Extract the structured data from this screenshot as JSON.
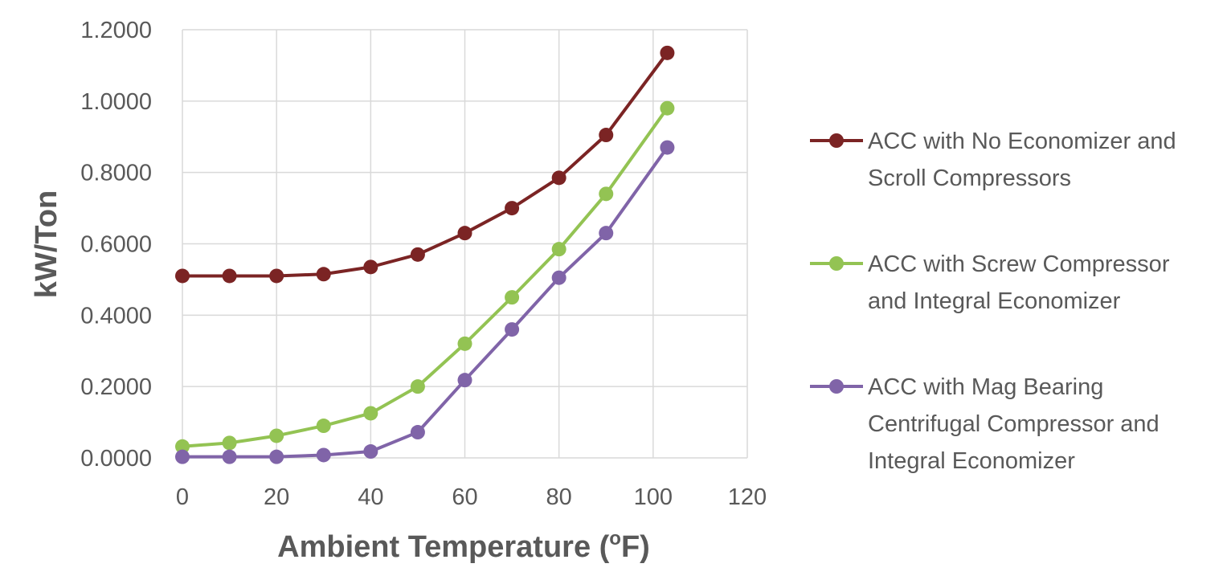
{
  "chart_data": {
    "type": "line",
    "title": "",
    "xlabel": "Ambient Temperature (",
    "xlabel_superscript": "o",
    "xlabel_suffix": "F)",
    "ylabel": "kW/Ton",
    "xlim": [
      0,
      120
    ],
    "ylim": [
      0,
      1.2
    ],
    "xticks": [
      0,
      20,
      40,
      60,
      80,
      100,
      120
    ],
    "xtick_labels": [
      "0",
      "20",
      "40",
      "60",
      "80",
      "100",
      "120"
    ],
    "yticks": [
      0,
      0.2,
      0.4,
      0.6,
      0.8,
      1.0,
      1.2
    ],
    "ytick_labels": [
      "0.0000",
      "0.2000",
      "0.4000",
      "0.6000",
      "0.8000",
      "1.0000",
      "1.2000"
    ],
    "grid": true,
    "legend_position": "right",
    "x": [
      0,
      10,
      20,
      30,
      40,
      50,
      60,
      70,
      80,
      90,
      103
    ],
    "series": [
      {
        "name": "ACC with No Economizer and Scroll Compressors",
        "legend_lines": [
          "ACC with No Economizer and",
          "Scroll Compressors"
        ],
        "color": "#7b2424",
        "values": [
          0.51,
          0.51,
          0.51,
          0.515,
          0.535,
          0.57,
          0.63,
          0.7,
          0.785,
          0.905,
          1.135
        ]
      },
      {
        "name": "ACC with Screw Compressor and Integral Economizer",
        "legend_lines": [
          "ACC with Screw Compressor",
          "and Integral Economizer"
        ],
        "color": "#93c353",
        "values": [
          0.032,
          0.042,
          0.062,
          0.09,
          0.125,
          0.2,
          0.32,
          0.45,
          0.585,
          0.74,
          0.98
        ]
      },
      {
        "name": "ACC with Mag Bearing Centrifugal Compressor and Integral Economizer",
        "legend_lines": [
          "ACC with Mag Bearing",
          "Centrifugal Compressor and",
          "Integral Economizer"
        ],
        "color": "#8064a8",
        "values": [
          0.003,
          0.003,
          0.003,
          0.008,
          0.018,
          0.072,
          0.218,
          0.36,
          0.505,
          0.63,
          0.87
        ]
      }
    ]
  }
}
